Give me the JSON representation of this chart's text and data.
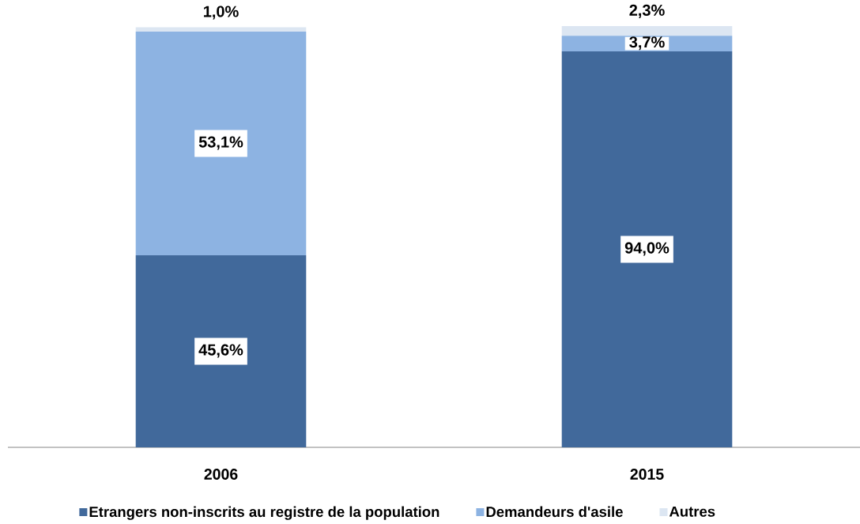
{
  "chart_data": {
    "type": "bar",
    "stacked": true,
    "categories": [
      "2006",
      "2015"
    ],
    "series": [
      {
        "name": "Etrangers non-inscrits au registre de la population",
        "color": "#41699b",
        "values": [
          45.6,
          94.0
        ],
        "value_labels": [
          "45,6%",
          "94,0%"
        ]
      },
      {
        "name": "Demandeurs d'asile",
        "color": "#8db3e2",
        "values": [
          53.1,
          3.7
        ],
        "value_labels": [
          "53,1%",
          "3,7%"
        ]
      },
      {
        "name": "Autres",
        "color": "#dce6f2",
        "values": [
          1.0,
          2.3
        ],
        "value_labels": [
          "1,0%",
          "2,3%"
        ]
      }
    ],
    "ylim": [
      0,
      100
    ],
    "legend": "bottom",
    "tick_labels": "x"
  }
}
